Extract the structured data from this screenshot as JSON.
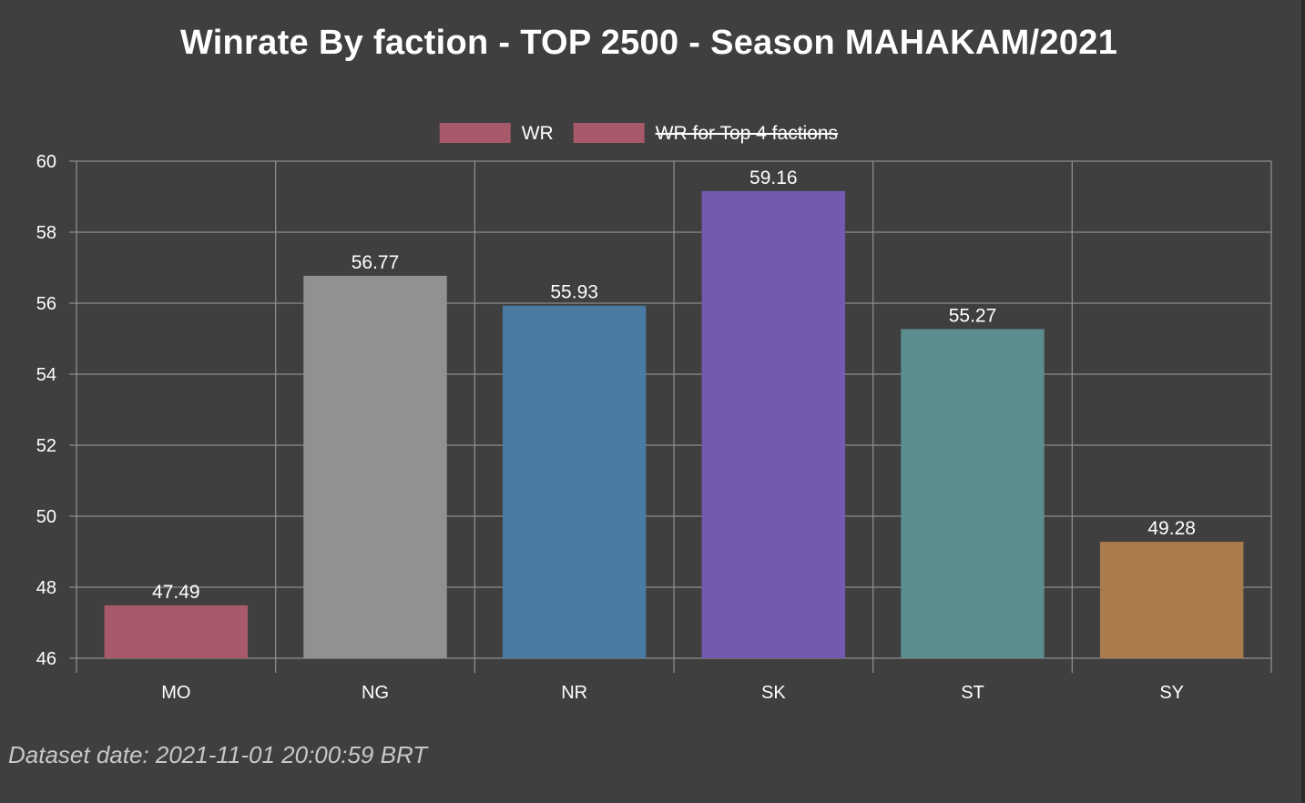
{
  "chart_data": {
    "type": "bar",
    "title": "Winrate By faction - TOP 2500 - Season MAHAKAM/2021",
    "categories": [
      "MO",
      "NG",
      "NR",
      "SK",
      "ST",
      "SY"
    ],
    "series": [
      {
        "name": "WR",
        "values": [
          47.49,
          56.77,
          55.93,
          59.16,
          55.27,
          49.28
        ],
        "colors": [
          "#a8596a",
          "#919191",
          "#4b7ba3",
          "#735ab0",
          "#5b8d8e",
          "#aa7b4b"
        ]
      }
    ],
    "legend": [
      {
        "label": "WR",
        "color": "#a8596a",
        "hidden": false
      },
      {
        "label": "WR for Top 4 factions",
        "color": "#a8596a",
        "hidden": true
      }
    ],
    "yticks": [
      "46",
      "48",
      "50",
      "52",
      "54",
      "56",
      "58",
      "60"
    ],
    "ylim": [
      46,
      60
    ],
    "ystep": 2,
    "grid": true,
    "legend_position": "top",
    "show_value_labels": true
  },
  "footnote": "Dataset date: 2021-11-01 20:00:59 BRT",
  "colors": {
    "background": "#3f3f3f",
    "grid": "#8c8c8c",
    "text": "#ffffff"
  }
}
